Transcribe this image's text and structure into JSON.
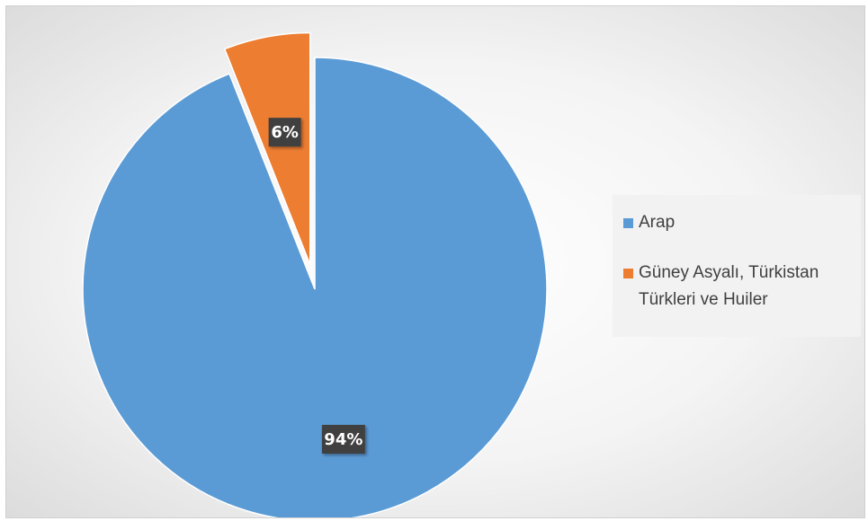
{
  "chart_data": {
    "type": "pie",
    "title": "",
    "categories": [
      "Arap",
      "Güney Asyalı, Türkistan Türkleri ve Huiler"
    ],
    "values": [
      94,
      6
    ],
    "data_labels": [
      "94%",
      "6%"
    ],
    "colors": [
      "#5b9bd5",
      "#ed7d31"
    ],
    "exploded": [
      false,
      true
    ],
    "legend_position": "right",
    "legend": [
      {
        "label": "Arap",
        "color": "#5b9bd5"
      },
      {
        "label": "Güney Asyalı, Türkistan\nTürkleri ve Huiler",
        "color": "#ed7d31"
      }
    ]
  }
}
